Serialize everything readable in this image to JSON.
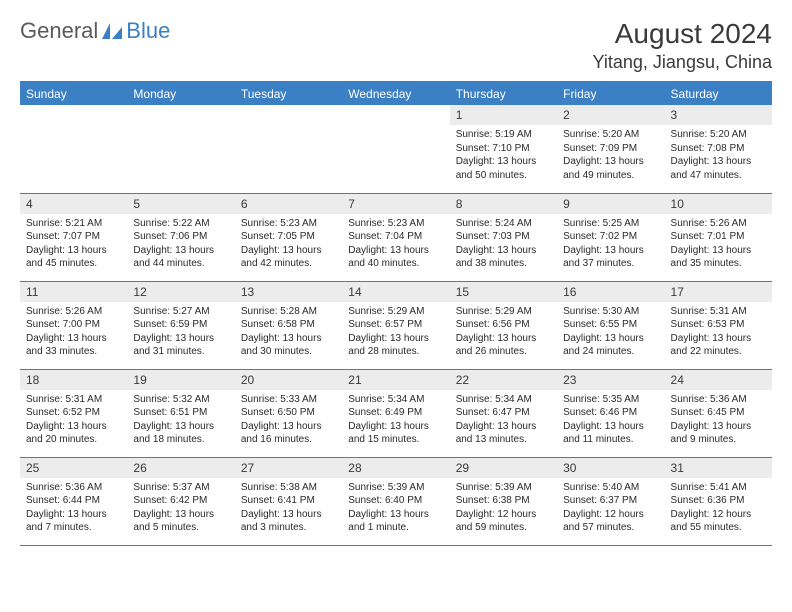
{
  "logo": {
    "text1": "General",
    "text2": "Blue"
  },
  "title": "August 2024",
  "location": "Yitang, Jiangsu, China",
  "colors": {
    "header_bg": "#3b7fc4",
    "header_text": "#ffffff",
    "daynum_bg": "#ececec",
    "border": "#3b7fc4",
    "text": "#3a3a3a"
  },
  "day_headers": [
    "Sunday",
    "Monday",
    "Tuesday",
    "Wednesday",
    "Thursday",
    "Friday",
    "Saturday"
  ],
  "weeks": [
    [
      null,
      null,
      null,
      null,
      {
        "n": "1",
        "sr": "5:19 AM",
        "ss": "7:10 PM",
        "dl": "13 hours and 50 minutes."
      },
      {
        "n": "2",
        "sr": "5:20 AM",
        "ss": "7:09 PM",
        "dl": "13 hours and 49 minutes."
      },
      {
        "n": "3",
        "sr": "5:20 AM",
        "ss": "7:08 PM",
        "dl": "13 hours and 47 minutes."
      }
    ],
    [
      {
        "n": "4",
        "sr": "5:21 AM",
        "ss": "7:07 PM",
        "dl": "13 hours and 45 minutes."
      },
      {
        "n": "5",
        "sr": "5:22 AM",
        "ss": "7:06 PM",
        "dl": "13 hours and 44 minutes."
      },
      {
        "n": "6",
        "sr": "5:23 AM",
        "ss": "7:05 PM",
        "dl": "13 hours and 42 minutes."
      },
      {
        "n": "7",
        "sr": "5:23 AM",
        "ss": "7:04 PM",
        "dl": "13 hours and 40 minutes."
      },
      {
        "n": "8",
        "sr": "5:24 AM",
        "ss": "7:03 PM",
        "dl": "13 hours and 38 minutes."
      },
      {
        "n": "9",
        "sr": "5:25 AM",
        "ss": "7:02 PM",
        "dl": "13 hours and 37 minutes."
      },
      {
        "n": "10",
        "sr": "5:26 AM",
        "ss": "7:01 PM",
        "dl": "13 hours and 35 minutes."
      }
    ],
    [
      {
        "n": "11",
        "sr": "5:26 AM",
        "ss": "7:00 PM",
        "dl": "13 hours and 33 minutes."
      },
      {
        "n": "12",
        "sr": "5:27 AM",
        "ss": "6:59 PM",
        "dl": "13 hours and 31 minutes."
      },
      {
        "n": "13",
        "sr": "5:28 AM",
        "ss": "6:58 PM",
        "dl": "13 hours and 30 minutes."
      },
      {
        "n": "14",
        "sr": "5:29 AM",
        "ss": "6:57 PM",
        "dl": "13 hours and 28 minutes."
      },
      {
        "n": "15",
        "sr": "5:29 AM",
        "ss": "6:56 PM",
        "dl": "13 hours and 26 minutes."
      },
      {
        "n": "16",
        "sr": "5:30 AM",
        "ss": "6:55 PM",
        "dl": "13 hours and 24 minutes."
      },
      {
        "n": "17",
        "sr": "5:31 AM",
        "ss": "6:53 PM",
        "dl": "13 hours and 22 minutes."
      }
    ],
    [
      {
        "n": "18",
        "sr": "5:31 AM",
        "ss": "6:52 PM",
        "dl": "13 hours and 20 minutes."
      },
      {
        "n": "19",
        "sr": "5:32 AM",
        "ss": "6:51 PM",
        "dl": "13 hours and 18 minutes."
      },
      {
        "n": "20",
        "sr": "5:33 AM",
        "ss": "6:50 PM",
        "dl": "13 hours and 16 minutes."
      },
      {
        "n": "21",
        "sr": "5:34 AM",
        "ss": "6:49 PM",
        "dl": "13 hours and 15 minutes."
      },
      {
        "n": "22",
        "sr": "5:34 AM",
        "ss": "6:47 PM",
        "dl": "13 hours and 13 minutes."
      },
      {
        "n": "23",
        "sr": "5:35 AM",
        "ss": "6:46 PM",
        "dl": "13 hours and 11 minutes."
      },
      {
        "n": "24",
        "sr": "5:36 AM",
        "ss": "6:45 PM",
        "dl": "13 hours and 9 minutes."
      }
    ],
    [
      {
        "n": "25",
        "sr": "5:36 AM",
        "ss": "6:44 PM",
        "dl": "13 hours and 7 minutes."
      },
      {
        "n": "26",
        "sr": "5:37 AM",
        "ss": "6:42 PM",
        "dl": "13 hours and 5 minutes."
      },
      {
        "n": "27",
        "sr": "5:38 AM",
        "ss": "6:41 PM",
        "dl": "13 hours and 3 minutes."
      },
      {
        "n": "28",
        "sr": "5:39 AM",
        "ss": "6:40 PM",
        "dl": "13 hours and 1 minute."
      },
      {
        "n": "29",
        "sr": "5:39 AM",
        "ss": "6:38 PM",
        "dl": "12 hours and 59 minutes."
      },
      {
        "n": "30",
        "sr": "5:40 AM",
        "ss": "6:37 PM",
        "dl": "12 hours and 57 minutes."
      },
      {
        "n": "31",
        "sr": "5:41 AM",
        "ss": "6:36 PM",
        "dl": "12 hours and 55 minutes."
      }
    ]
  ],
  "labels": {
    "sunrise": "Sunrise:",
    "sunset": "Sunset:",
    "daylight": "Daylight:"
  }
}
